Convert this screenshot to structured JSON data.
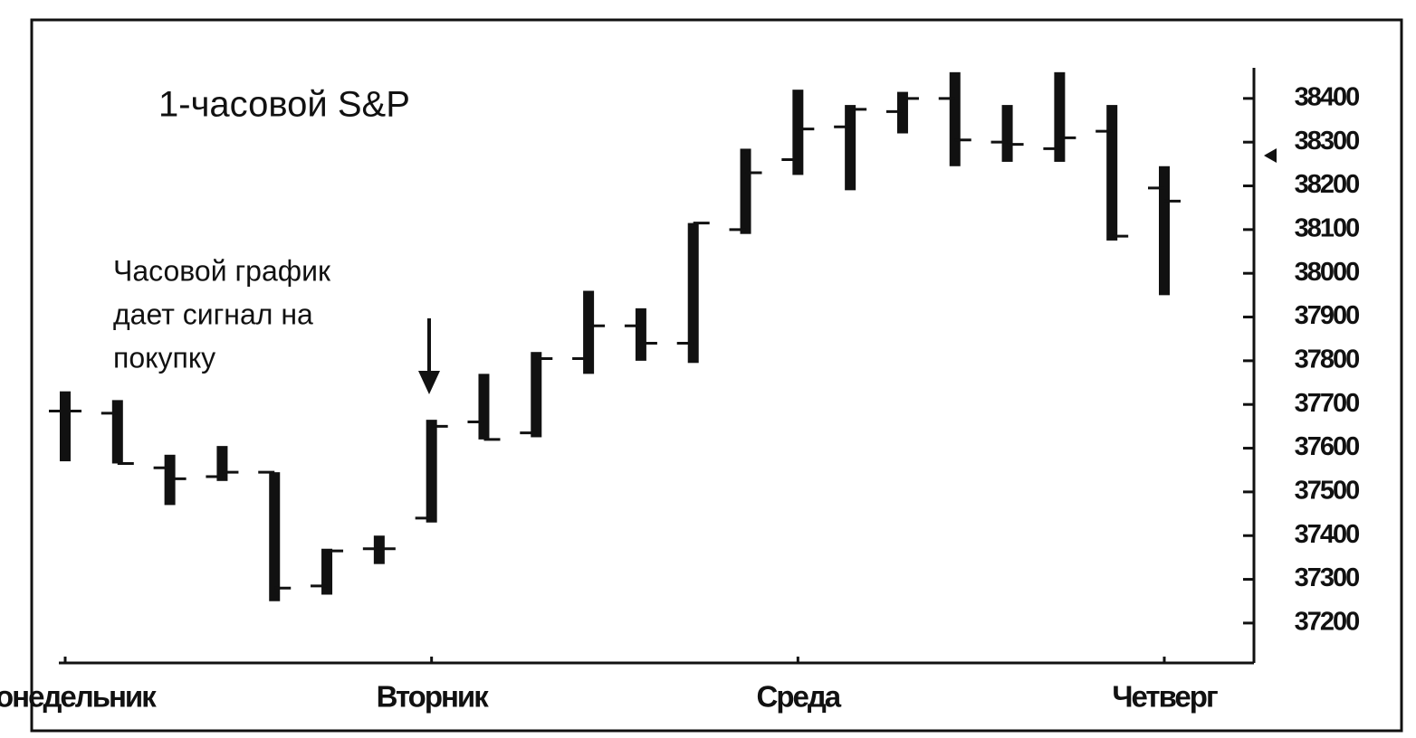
{
  "chart_data": {
    "type": "ohlc",
    "title": "1-часовой  S&P",
    "annotation": [
      "Часовой график",
      "дает сигнал на",
      "покупку"
    ],
    "categories": [
      "Понедельник",
      null,
      null,
      null,
      null,
      null,
      null,
      "Вторник",
      null,
      null,
      null,
      null,
      null,
      null,
      "Среда",
      null,
      null,
      null,
      null,
      null,
      null,
      "Четверг"
    ],
    "open": [
      37685,
      37680,
      37555,
      37535,
      37545,
      37285,
      37370,
      37440,
      37660,
      37635,
      37805,
      37880,
      37840,
      38100,
      38260,
      38335,
      38370,
      38400,
      38300,
      38285,
      38325,
      38195
    ],
    "high": [
      37730,
      37710,
      37585,
      37605,
      37545,
      37370,
      37400,
      37665,
      37770,
      37820,
      37960,
      37920,
      38115,
      38285,
      38420,
      38385,
      38415,
      38460,
      38385,
      38460,
      38385,
      38245
    ],
    "low": [
      37570,
      37565,
      37470,
      37525,
      37250,
      37265,
      37335,
      37430,
      37620,
      37625,
      37770,
      37800,
      37795,
      38090,
      38225,
      38190,
      38320,
      38245,
      38255,
      38255,
      38075,
      37950
    ],
    "close": [
      37685,
      37565,
      37530,
      37545,
      37280,
      37365,
      37370,
      37650,
      37620,
      37805,
      37880,
      37840,
      38115,
      38230,
      38330,
      38375,
      38400,
      38305,
      38295,
      38310,
      38085,
      38165
    ],
    "color": "#111111",
    "ylim": [
      37115,
      38470
    ],
    "yticks": [
      37200,
      37300,
      37400,
      37500,
      37600,
      37700,
      37800,
      37900,
      38000,
      38100,
      38200,
      38300,
      38400
    ]
  }
}
